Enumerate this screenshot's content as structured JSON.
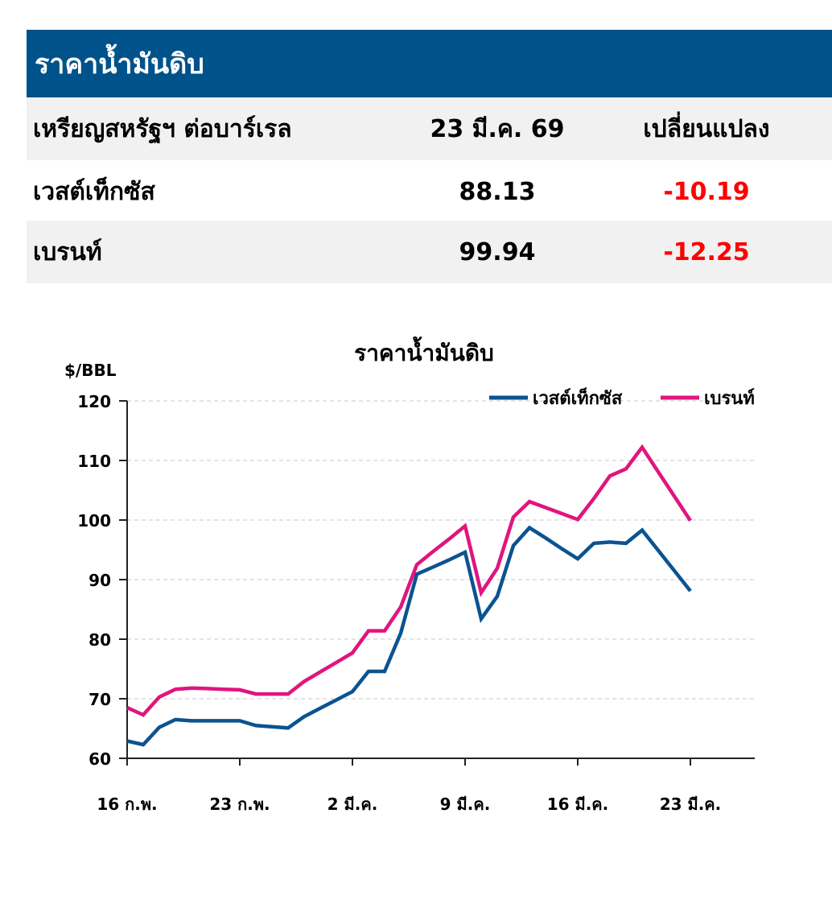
{
  "header": {
    "title": "ราคาน้ำมันดิบ"
  },
  "table": {
    "columns": [
      "เหรียญสหรัฐฯ ต่อบาร์เรล",
      "23 มี.ค. 69",
      "เปลี่ยนแปลง"
    ],
    "rows": [
      {
        "name": "เวสต์เท็กซัส",
        "price": "88.13",
        "change": "-10.19"
      },
      {
        "name": "เบรนท์",
        "price": "99.94",
        "change": "-12.25"
      }
    ]
  },
  "chart_data": {
    "type": "line",
    "title": "ราคาน้ำมันดิบ",
    "ylabel": "$/BBL",
    "ylim": [
      60,
      120
    ],
    "yticks": [
      60,
      70,
      80,
      90,
      100,
      110,
      120
    ],
    "x_ticklabels": [
      "16 ก.พ.",
      "23 ก.พ.",
      "2 มี.ค.",
      "9 มี.ค.",
      "16 มี.ค.",
      "23 มี.ค."
    ],
    "grid": "horizontal-dashed",
    "legend_position": "top-right",
    "colors": {
      "wti": "#0b5391",
      "brent": "#e0157e"
    },
    "series": [
      {
        "name": "เวสต์เท็กซัส",
        "x": [
          0,
          1,
          2,
          3,
          4,
          5,
          6,
          7,
          8,
          9,
          10,
          11,
          12,
          13,
          14,
          15,
          16,
          17,
          18,
          19,
          20,
          21,
          22,
          23,
          24,
          25,
          26,
          27,
          28,
          29,
          30,
          31,
          32,
          33,
          34,
          35
        ],
        "values": [
          62.9,
          62.3,
          65.2,
          66.5,
          66.3,
          66.3,
          66.3,
          66.3,
          65.5,
          65.3,
          65.1,
          67.0,
          68.4,
          69.8,
          71.2,
          74.6,
          74.6,
          81.0,
          90.9,
          92.1,
          93.3,
          94.6,
          83.4,
          87.2,
          95.7,
          98.7,
          97.0,
          95.2,
          93.5,
          96.1,
          96.3,
          96.1,
          98.3,
          94.9,
          91.5,
          88.1
        ]
      },
      {
        "name": "เบรนท์",
        "x": [
          0,
          1,
          2,
          3,
          4,
          5,
          6,
          7,
          8,
          9,
          10,
          11,
          12,
          13,
          14,
          15,
          16,
          17,
          18,
          19,
          20,
          21,
          22,
          23,
          24,
          25,
          26,
          27,
          28,
          29,
          30,
          31,
          32,
          33,
          34,
          35
        ],
        "values": [
          68.5,
          67.3,
          70.3,
          71.6,
          71.8,
          71.7,
          71.6,
          71.5,
          70.8,
          70.8,
          70.8,
          72.9,
          74.5,
          76.1,
          77.7,
          81.4,
          81.4,
          85.4,
          92.5,
          94.7,
          96.8,
          99.0,
          87.8,
          91.9,
          100.5,
          103.1,
          102.1,
          101.1,
          100.1,
          103.6,
          107.4,
          108.6,
          112.2,
          108.1,
          104.0,
          99.9
        ]
      }
    ]
  }
}
